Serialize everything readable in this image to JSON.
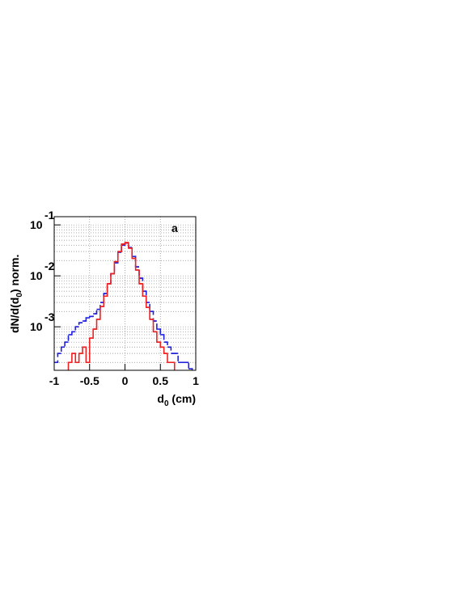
{
  "chart_data": {
    "type": "histogram",
    "annotation": "a",
    "xlabel": [
      "d",
      "0",
      " (cm)"
    ],
    "ylabel": [
      "dN/d(d",
      "0",
      ") norm."
    ],
    "bins": [
      -1,
      -0.95,
      -0.9,
      -0.85,
      -0.8,
      -0.75,
      -0.7,
      -0.65,
      -0.6,
      -0.55,
      -0.5,
      -0.45,
      -0.4,
      -0.35,
      -0.3,
      -0.25,
      -0.2,
      -0.15,
      -0.1,
      -0.05,
      0,
      0.05,
      0.1,
      0.15,
      0.2,
      0.25,
      0.3,
      0.35,
      0.4,
      0.45,
      0.5,
      0.55,
      0.6,
      0.65,
      0.7,
      0.75,
      0.8,
      0.85,
      0.9,
      0.95,
      1
    ],
    "series": [
      {
        "color": "#2222dd",
        "dash": true,
        "values": [
          0.0002,
          0.0003,
          0.0004,
          0.0005,
          0.0007,
          0.0008,
          0.001,
          0.0012,
          0.0013,
          0.0015,
          0.0016,
          0.0018,
          0.0022,
          0.003,
          0.0045,
          0.007,
          0.011,
          0.018,
          0.029,
          0.04,
          0.044,
          0.036,
          0.024,
          0.015,
          0.009,
          0.005,
          0.003,
          0.002,
          0.0013,
          0.0009,
          0.0007,
          0.0005,
          0.0004,
          0.0003,
          0.0003,
          0.0002,
          0.0002,
          0.0002,
          0.00015,
          0.0001
        ]
      },
      {
        "color": "#ee2222",
        "dash": false,
        "values": [
          0,
          0,
          0,
          0,
          0.0002,
          0.0003,
          0.0002,
          0.0003,
          0.0004,
          0.0002,
          0.0006,
          0.0009,
          0.0014,
          0.0025,
          0.004,
          0.007,
          0.011,
          0.019,
          0.03,
          0.042,
          0.045,
          0.035,
          0.022,
          0.013,
          0.007,
          0.004,
          0.0024,
          0.0014,
          0.0008,
          0.0005,
          0.0004,
          0.0003,
          0.0002,
          0.0002,
          0.0001,
          0,
          0,
          0,
          0,
          0
        ]
      }
    ],
    "xlim": [
      -1,
      1
    ],
    "xticks": [
      -1,
      -0.5,
      0,
      0.5,
      1
    ],
    "ylim": [
      0.00014,
      0.145
    ],
    "log_y": true,
    "yticks": [
      {
        "value": 0.1,
        "label": "10",
        "exponent": "-1"
      },
      {
        "value": 0.01,
        "label": "10",
        "exponent": "-2"
      },
      {
        "value": 0.001,
        "label": "10",
        "exponent": "-3"
      }
    ],
    "grid": true
  }
}
